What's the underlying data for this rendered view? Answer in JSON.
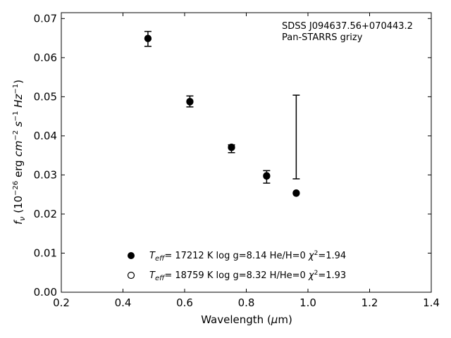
{
  "chart_data": {
    "type": "scatter",
    "xlabel": "Wavelength (μm)",
    "ylabel": "f_ν (10^-26 erg cm^-2 s^-1 Hz^-1)",
    "xlim": [
      0.2,
      1.4
    ],
    "ylim": [
      0.0,
      0.0715
    ],
    "xticks": [
      "0.2",
      "0.4",
      "0.6",
      "0.8",
      "1.0",
      "1.2",
      "1.4"
    ],
    "yticks": [
      "0.00",
      "0.01",
      "0.02",
      "0.03",
      "0.04",
      "0.05",
      "0.06",
      "0.07"
    ],
    "grid": false,
    "annotations": [
      "SDSS J094637.56+070443.2",
      "Pan-STARRS grizy"
    ],
    "observed": {
      "x": [
        0.481,
        0.617,
        0.752,
        0.866,
        0.962
      ],
      "y": [
        0.0648,
        0.0488,
        0.0367,
        0.0295,
        0.0397
      ],
      "yerr": [
        0.0019,
        0.0014,
        0.001,
        0.0016,
        0.0107
      ]
    },
    "series": [
      {
        "name": "T_eff= 17212 K  log g=8.14  He/H=0  χ²=1.94",
        "marker": "filled-circle",
        "x": [
          0.481,
          0.617,
          0.752,
          0.866,
          0.962
        ],
        "y": [
          0.0649,
          0.0487,
          0.037,
          0.0297,
          0.0253
        ]
      },
      {
        "name": "T_eff= 18759 K  log g=8.32  H/He=0  χ²=1.93",
        "marker": "open-circle",
        "x": [
          0.481,
          0.617,
          0.752,
          0.866,
          0.962
        ],
        "y": [
          0.0649,
          0.0488,
          0.0371,
          0.0298,
          0.0254
        ]
      }
    ]
  }
}
